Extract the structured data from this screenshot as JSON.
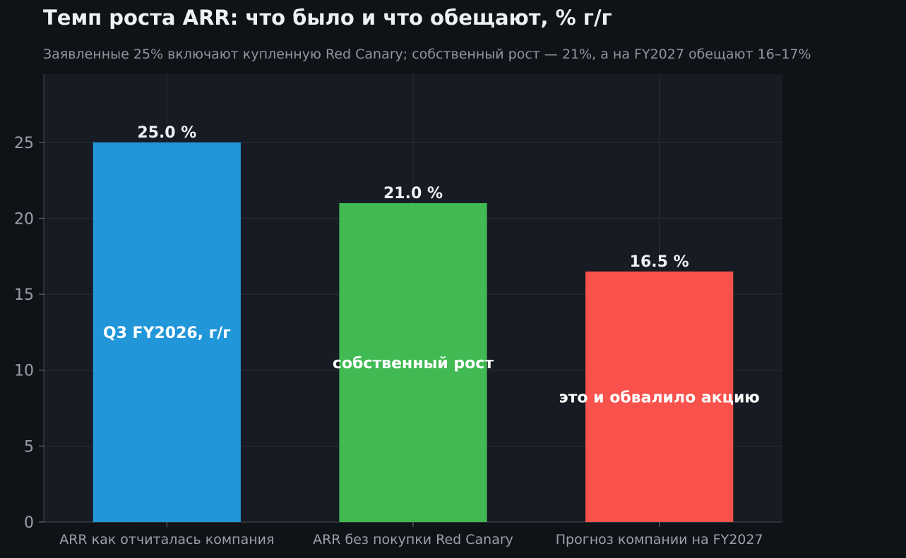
{
  "chart_data": {
    "type": "bar",
    "title": "Темп роста ARR: что было и что обещают, % г/г",
    "subtitle": "Заявленные 25% включают купленную Red Canary; собственный рост — 21%, а на FY2027 обещают 16–17%",
    "xlabel": "",
    "ylabel": "",
    "categories": [
      "ARR как отчиталась компания",
      "ARR без покупки Red Canary",
      "Прогноз компании на FY2027"
    ],
    "values": [
      25.0,
      21.0,
      16.5
    ],
    "value_labels": [
      "25.0 %",
      "21.0 %",
      "16.5 %"
    ],
    "inner_labels": [
      "Q3 FY2026, г/г",
      "собственный рост",
      "это и обвалило акцию"
    ],
    "colors": [
      "#2196d8",
      "#41ba53",
      "#f9524c"
    ],
    "yticks": [
      0,
      5,
      10,
      15,
      20,
      25
    ],
    "ylim": [
      0,
      29.5
    ],
    "grid": true,
    "legend": "none"
  }
}
